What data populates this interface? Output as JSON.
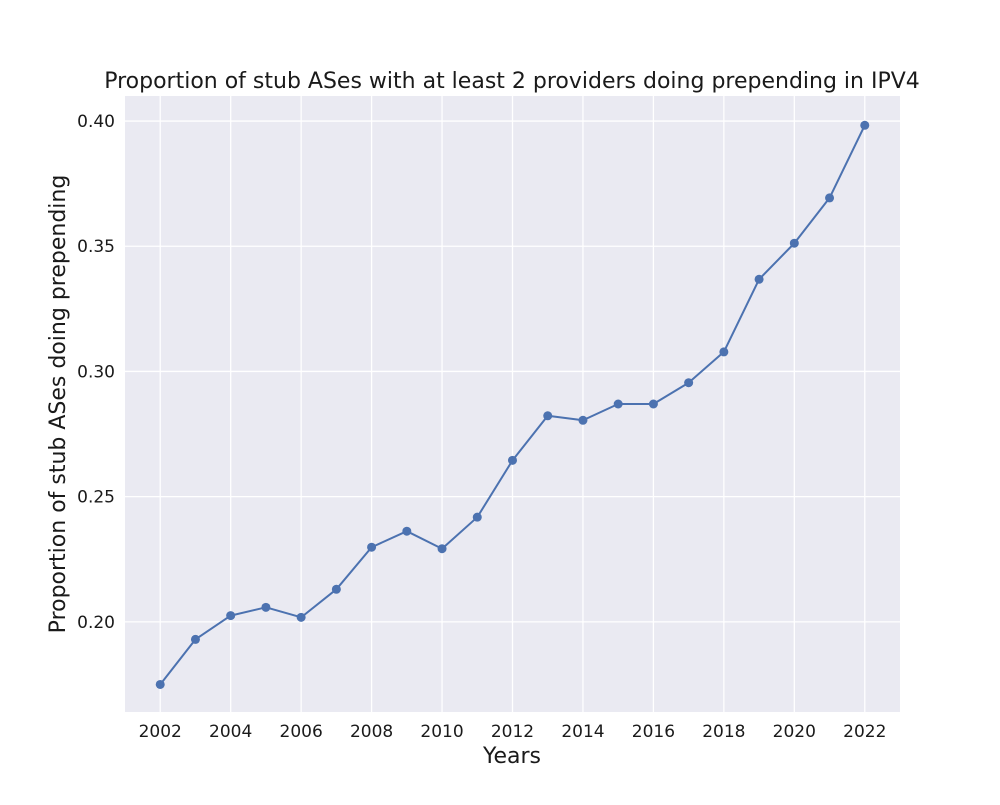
{
  "chart_data": {
    "type": "line",
    "title": "Proportion of stub ASes with at least 2 providers doing prepending in IPV4",
    "xlabel": "Years",
    "ylabel": "Proportion of stub ASes doing prepending",
    "x": [
      2002,
      2003,
      2004,
      2005,
      2006,
      2007,
      2008,
      2009,
      2010,
      2011,
      2012,
      2013,
      2014,
      2015,
      2016,
      2017,
      2018,
      2019,
      2020,
      2021,
      2022
    ],
    "series": [
      {
        "values": [
          0.175,
          0.193,
          0.2025,
          0.2058,
          0.2018,
          0.213,
          0.2298,
          0.2362,
          0.2292,
          0.2418,
          0.2645,
          0.2823,
          0.2805,
          0.287,
          0.287,
          0.2955,
          0.3078,
          0.3368,
          0.3512,
          0.3693,
          0.3983
        ],
        "color": "#4c72b0"
      }
    ],
    "xticks": [
      "2002",
      "2004",
      "2006",
      "2008",
      "2010",
      "2012",
      "2014",
      "2016",
      "2018",
      "2020",
      "2022"
    ],
    "yticks": [
      "0.20",
      "0.25",
      "0.30",
      "0.35",
      "0.40"
    ],
    "xlim": [
      2001.0,
      2023.0
    ],
    "ylim": [
      0.164,
      0.41
    ],
    "grid": true,
    "legend": "none"
  }
}
